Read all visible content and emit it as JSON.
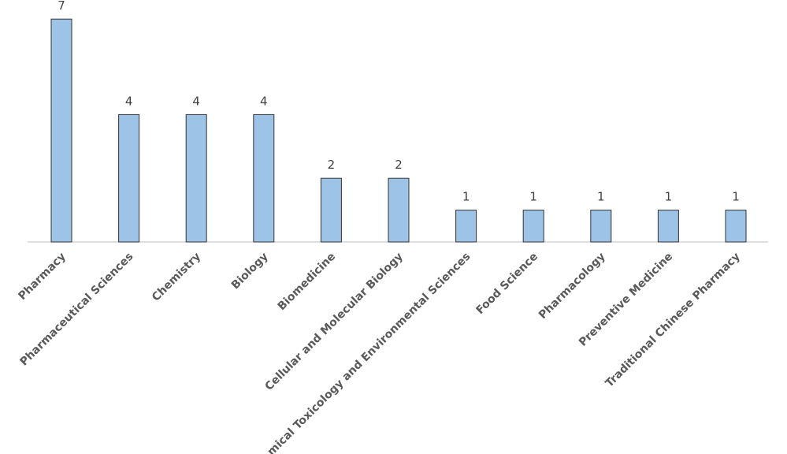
{
  "chart_data": {
    "type": "bar",
    "categories": [
      "Pharmacy",
      "Pharmaceutical Sciences",
      "Chemistry",
      "Biology",
      "Biomedicine",
      "Cellular and Molecular Biology",
      "mical Toxicology and Environmental Sciences",
      "Food Science",
      "Pharmacology",
      "Preventive Medicine",
      "Traditional Chinese Pharmacy"
    ],
    "values": [
      7,
      4,
      4,
      4,
      2,
      2,
      1,
      1,
      1,
      1,
      1
    ],
    "color": "#9dc3e6"
  }
}
